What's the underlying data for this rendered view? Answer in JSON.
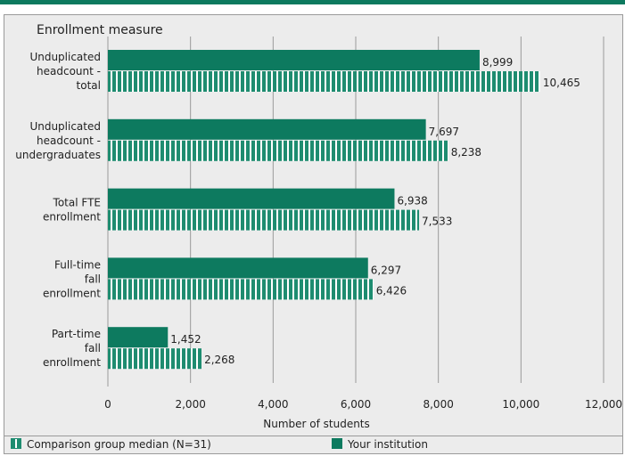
{
  "chart_data": {
    "type": "bar",
    "orientation": "horizontal",
    "title": "Enrollment measure",
    "xlabel": "Number of students",
    "xlim": [
      0,
      12000
    ],
    "xticks": [
      0,
      2000,
      4000,
      6000,
      8000,
      10000,
      12000
    ],
    "xtick_labels": [
      "0",
      "2,000",
      "4,000",
      "6,000",
      "8,000",
      "10,000",
      "12,000"
    ],
    "grid": "vertical",
    "legend_position": "bottom",
    "categories": [
      [
        "Unduplicated",
        "headcount -",
        "total"
      ],
      [
        "Unduplicated",
        "headcount -",
        "undergraduates"
      ],
      [
        "Total FTE",
        "enrollment"
      ],
      [
        "Full-time",
        "fall",
        "enrollment"
      ],
      [
        "Part-time",
        "fall",
        "enrollment"
      ]
    ],
    "series": [
      {
        "name": "Your institution",
        "color": "#0d7a5f",
        "pattern": "solid",
        "values": [
          8999,
          7697,
          6938,
          6297,
          1452
        ],
        "labels": [
          "8,999",
          "7,697",
          "6,938",
          "6,297",
          "1,452"
        ]
      },
      {
        "name": "Comparison group median (N=31)",
        "color": "#1e8c70",
        "pattern": "vertical-stripes",
        "values": [
          10465,
          8238,
          7533,
          6426,
          2268
        ],
        "labels": [
          "10,465",
          "8,238",
          "7,533",
          "6,426",
          "2,268"
        ]
      }
    ]
  },
  "legend": {
    "comparison_label": "Comparison group median (N=31)",
    "institution_label": "Your institution"
  },
  "colors": {
    "brand": "#0d7a5f",
    "panel": "#ececec",
    "grid": "#9a9a9a"
  }
}
